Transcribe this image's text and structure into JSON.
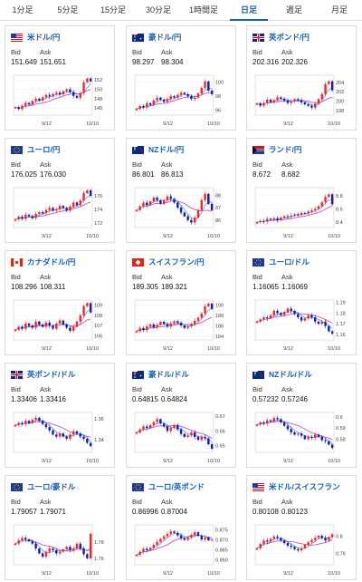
{
  "tabs": [
    {
      "label": "1分足",
      "active": false
    },
    {
      "label": "5分足",
      "active": false
    },
    {
      "label": "15分足",
      "active": false
    },
    {
      "label": "30分足",
      "active": false
    },
    {
      "label": "1時間足",
      "active": false
    },
    {
      "label": "日足",
      "active": true
    },
    {
      "label": "週足",
      "active": false
    },
    {
      "label": "月足",
      "active": false
    }
  ],
  "colors": {
    "up": "#ff2222",
    "down": "#1a1aa8",
    "ma_fast": "#3aa7ff",
    "ma_slow": "#c040c0",
    "link": "#1a5fb4"
  },
  "quotes": [
    {
      "pair": "米ドル/円",
      "flag": "us-flag-icon",
      "bid_label": "Bid",
      "ask_label": "Ask",
      "bid": "151.649",
      "ask": "151.651",
      "chart_data": {
        "type": "candlestick",
        "x_labels": [
          "9/12",
          "10/10"
        ],
        "y_ticks": [
          "152",
          "150",
          "148",
          "146"
        ],
        "ylim": [
          144.5,
          153
        ],
        "closes": [
          146.2,
          145.8,
          146.5,
          147.1,
          146.8,
          147.5,
          148.0,
          147.6,
          148.3,
          148.8,
          148.5,
          149.0,
          149.3,
          148.9,
          149.6,
          150.0,
          149.4,
          148.6,
          148.2,
          149.2,
          151.5,
          152.3,
          151.7
        ]
      }
    },
    {
      "pair": "豪ドル/円",
      "flag": "au-flag-icon",
      "bid_label": "Bid",
      "ask_label": "Ask",
      "bid": "98.297",
      "ask": "98.304",
      "chart_data": {
        "type": "candlestick",
        "x_labels": [
          "9/12",
          "10/10"
        ],
        "y_ticks": [
          "100",
          "98",
          "96"
        ],
        "ylim": [
          95.3,
          101
        ],
        "closes": [
          96.2,
          96.6,
          96.4,
          97.0,
          96.8,
          97.4,
          97.8,
          97.5,
          97.2,
          97.6,
          98.0,
          97.8,
          98.2,
          98.5,
          98.3,
          98.0,
          97.6,
          97.8,
          98.4,
          99.2,
          100.1,
          98.8,
          98.3
        ]
      }
    },
    {
      "pair": "英ポンド/円",
      "flag": "uk-flag-icon",
      "bid_label": "Bid",
      "ask_label": "Ask",
      "bid": "202.316",
      "ask": "202.326",
      "chart_data": {
        "type": "candlestick",
        "x_labels": [
          "9/12",
          "10/10"
        ],
        "y_ticks": [
          "204",
          "202",
          "200",
          "198"
        ],
        "ylim": [
          197,
          205.5
        ],
        "closes": [
          199.5,
          199.0,
          199.6,
          200.3,
          199.8,
          200.2,
          200.8,
          200.5,
          200.1,
          199.6,
          199.9,
          200.4,
          200.2,
          199.7,
          199.3,
          199.0,
          198.6,
          199.4,
          200.4,
          201.5,
          203.6,
          204.2,
          202.3
        ]
      }
    },
    {
      "pair": "ユーロ/円",
      "flag": "eu-flag-icon",
      "bid_label": "Bid",
      "ask_label": "Ask",
      "bid": "176.025",
      "ask": "176.030",
      "chart_data": {
        "type": "candlestick",
        "x_labels": [
          "9/12",
          "10/10"
        ],
        "y_ticks": [
          "176",
          "174",
          "172"
        ],
        "ylim": [
          171.3,
          177.2
        ],
        "closes": [
          172.5,
          172.9,
          172.6,
          173.2,
          173.0,
          172.7,
          173.3,
          173.6,
          173.4,
          173.9,
          174.2,
          173.8,
          174.0,
          174.5,
          174.2,
          173.8,
          174.4,
          175.0,
          174.6,
          175.3,
          176.4,
          176.8,
          176.0
        ]
      }
    },
    {
      "pair": "NZドル/円",
      "flag": "nz-flag-icon",
      "bid_label": "Bid",
      "ask_label": "Ask",
      "bid": "86.801",
      "ask": "86.813",
      "chart_data": {
        "type": "candlestick",
        "x_labels": [
          "9/12",
          "10/10"
        ],
        "y_ticks": [
          "88",
          "87",
          "86"
        ],
        "ylim": [
          85.4,
          88.6
        ],
        "closes": [
          86.8,
          87.1,
          87.4,
          87.2,
          87.5,
          87.8,
          87.6,
          87.3,
          87.6,
          87.9,
          87.7,
          87.4,
          87.0,
          86.6,
          86.3,
          86.0,
          85.8,
          86.2,
          86.8,
          87.6,
          88.1,
          87.3,
          86.8
        ]
      }
    },
    {
      "pair": "ランド/円",
      "flag": "za-flag-icon",
      "bid_label": "Bid",
      "ask_label": "Ask",
      "bid": "8.672",
      "ask": "8.682",
      "chart_data": {
        "type": "candlestick",
        "x_labels": [
          "9/12",
          "10/10"
        ],
        "y_ticks": [
          "8.8",
          "8.6",
          "8.4"
        ],
        "ylim": [
          8.32,
          8.92
        ],
        "closes": [
          8.4,
          8.42,
          8.41,
          8.45,
          8.44,
          8.46,
          8.43,
          8.47,
          8.49,
          8.48,
          8.5,
          8.52,
          8.51,
          8.54,
          8.53,
          8.56,
          8.58,
          8.6,
          8.64,
          8.7,
          8.78,
          8.82,
          8.67
        ]
      }
    },
    {
      "pair": "カナダドル/円",
      "flag": "ca-flag-icon",
      "bid_label": "Bid",
      "ask_label": "Ask",
      "bid": "108.296",
      "ask": "108.311",
      "chart_data": {
        "type": "candlestick",
        "x_labels": [
          "9/12",
          "10/10"
        ],
        "y_ticks": [
          "109",
          "108",
          "107",
          "106"
        ],
        "ylim": [
          105.6,
          109.5
        ],
        "closes": [
          106.6,
          106.9,
          106.7,
          107.2,
          107.0,
          106.8,
          107.4,
          107.1,
          106.9,
          107.3,
          107.0,
          106.7,
          107.2,
          107.5,
          107.1,
          106.8,
          106.5,
          106.9,
          107.4,
          108.0,
          108.9,
          109.2,
          108.3
        ]
      }
    },
    {
      "pair": "スイスフラン/円",
      "flag": "ch-flag-icon",
      "bid_label": "Bid",
      "ask_label": "Ask",
      "bid": "189.305",
      "ask": "189.321",
      "chart_data": {
        "type": "candlestick",
        "x_labels": [
          "9/12",
          "10/10"
        ],
        "y_ticks": [
          "190",
          "188",
          "186",
          "184"
        ],
        "ylim": [
          183.3,
          191
        ],
        "closes": [
          185.0,
          185.6,
          185.2,
          185.9,
          186.3,
          185.8,
          186.2,
          186.8,
          186.4,
          185.9,
          186.5,
          186.9,
          186.6,
          186.1,
          185.6,
          185.9,
          186.4,
          187.0,
          187.6,
          188.4,
          189.8,
          190.3,
          189.3
        ]
      }
    },
    {
      "pair": "ユーロ/ドル",
      "flag": "eu-flag-icon",
      "bid_label": "Bid",
      "ask_label": "Ask",
      "bid": "1.16065",
      "ask": "1.16069",
      "chart_data": {
        "type": "candlestick",
        "x_labels": [
          "9/12",
          "10/10"
        ],
        "y_ticks": [
          "1.19",
          "1.18",
          "1.17",
          "1.16"
        ],
        "ylim": [
          1.155,
          1.192
        ],
        "closes": [
          1.172,
          1.174,
          1.176,
          1.175,
          1.178,
          1.182,
          1.18,
          1.178,
          1.181,
          1.184,
          1.182,
          1.179,
          1.176,
          1.173,
          1.175,
          1.178,
          1.176,
          1.172,
          1.17,
          1.172,
          1.168,
          1.163,
          1.161
        ]
      }
    },
    {
      "pair": "英ポンド/ドル",
      "flag": "uk-flag-icon",
      "bid_label": "Bid",
      "ask_label": "Ask",
      "bid": "1.33406",
      "ask": "1.33416",
      "chart_data": {
        "type": "candlestick",
        "x_labels": [
          "9/12",
          "10/10"
        ],
        "y_ticks": [
          "1.36",
          "1.34"
        ],
        "ylim": [
          1.328,
          1.366
        ],
        "closes": [
          1.354,
          1.356,
          1.355,
          1.358,
          1.356,
          1.359,
          1.361,
          1.358,
          1.355,
          1.352,
          1.349,
          1.345,
          1.343,
          1.346,
          1.343,
          1.341,
          1.345,
          1.348,
          1.346,
          1.343,
          1.341,
          1.337,
          1.334
        ]
      }
    },
    {
      "pair": "豪ドル/ドル",
      "flag": "au-flag-icon",
      "bid_label": "Bid",
      "ask_label": "Ask",
      "bid": "0.64815",
      "ask": "0.64824",
      "chart_data": {
        "type": "candlestick",
        "x_labels": [
          "9/12",
          "10/10"
        ],
        "y_ticks": [
          "0.67",
          "0.66",
          "0.65"
        ],
        "ylim": [
          0.6455,
          0.6725
        ],
        "closes": [
          0.659,
          0.661,
          0.663,
          0.662,
          0.664,
          0.666,
          0.668,
          0.665,
          0.663,
          0.66,
          0.662,
          0.664,
          0.661,
          0.658,
          0.656,
          0.657,
          0.659,
          0.656,
          0.654,
          0.656,
          0.655,
          0.651,
          0.648
        ]
      }
    },
    {
      "pair": "NZドル/ドル",
      "flag": "nz-flag-icon",
      "bid_label": "Bid",
      "ask_label": "Ask",
      "bid": "0.57232",
      "ask": "0.57246",
      "chart_data": {
        "type": "candlestick",
        "x_labels": [
          "9/12",
          "10/10"
        ],
        "y_ticks": [
          "0.6",
          "0.59",
          "0.58"
        ],
        "ylim": [
          0.568,
          0.604
        ],
        "closes": [
          0.593,
          0.595,
          0.594,
          0.597,
          0.596,
          0.599,
          0.598,
          0.595,
          0.592,
          0.589,
          0.586,
          0.584,
          0.585,
          0.583,
          0.58,
          0.582,
          0.581,
          0.584,
          0.582,
          0.579,
          0.578,
          0.575,
          0.572
        ]
      }
    },
    {
      "pair": "ユーロ/豪ドル",
      "flag": "eu-flag-icon",
      "bid_label": "Bid",
      "ask_label": "Ask",
      "bid": "1.79057",
      "ask": "1.79071",
      "chart_data": {
        "type": "candlestick",
        "x_labels": [
          "9/12",
          "10/10"
        ],
        "y_ticks": [
          "1.78",
          "1.76"
        ],
        "ylim": [
          1.752,
          1.801
        ],
        "closes": [
          1.778,
          1.782,
          1.785,
          1.783,
          1.781,
          1.778,
          1.772,
          1.766,
          1.762,
          1.768,
          1.772,
          1.77,
          1.766,
          1.768,
          1.771,
          1.774,
          1.77,
          1.772,
          1.778,
          1.772,
          1.765,
          1.76,
          1.79
        ]
      }
    },
    {
      "pair": "ユーロ/英ポンド",
      "flag": "eu-flag-icon",
      "bid_label": "Bid",
      "ask_label": "Ask",
      "bid": "0.86996",
      "ask": "0.87004",
      "chart_data": {
        "type": "candlestick",
        "x_labels": [
          "9/12",
          "10/10"
        ],
        "y_ticks": [
          "0.875",
          "0.870",
          "0.865",
          "0.860"
        ],
        "ylim": [
          0.8575,
          0.8775
        ],
        "closes": [
          0.8625,
          0.864,
          0.8655,
          0.8648,
          0.866,
          0.8675,
          0.869,
          0.8705,
          0.8718,
          0.873,
          0.8742,
          0.8735,
          0.8722,
          0.8708,
          0.87,
          0.8712,
          0.8725,
          0.8738,
          0.872,
          0.8702,
          0.8712,
          0.8698,
          0.87
        ]
      }
    },
    {
      "pair": "米ドル/スイスフラン",
      "flag": "us-flag-icon",
      "bid_label": "Bid",
      "ask_label": "Ask",
      "bid": "0.80108",
      "ask": "0.80123",
      "chart_data": {
        "type": "candlestick",
        "x_labels": [
          "9/12",
          "10/10"
        ],
        "y_ticks": [
          "0.8",
          "0.79"
        ],
        "ylim": [
          0.7835,
          0.8065
        ],
        "closes": [
          0.793,
          0.7955,
          0.7975,
          0.7968,
          0.7985,
          0.7998,
          0.799,
          0.7975,
          0.796,
          0.7945,
          0.7938,
          0.7925,
          0.7918,
          0.793,
          0.795,
          0.7965,
          0.7978,
          0.799,
          0.8002,
          0.799,
          0.7975,
          0.7995,
          0.8011
        ]
      }
    }
  ]
}
